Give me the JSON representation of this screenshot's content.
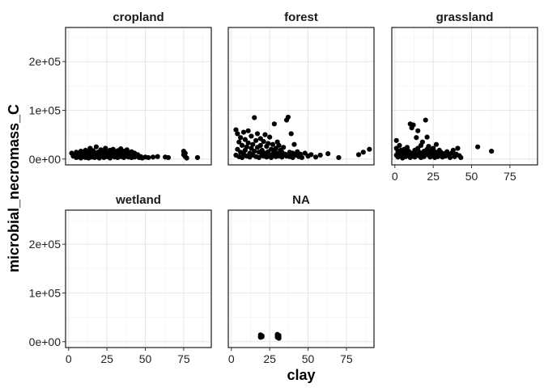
{
  "chart_data": {
    "type": "scatter",
    "layout": "facet-wrap",
    "xlabel": "clay",
    "ylabel": "microbial_necromass_C",
    "xlim": [
      -2,
      93
    ],
    "ylim": [
      -12000,
      270000
    ],
    "x_ticks": [
      0,
      25,
      50,
      75
    ],
    "x_tick_labels": [
      "0",
      "25",
      "50",
      "75"
    ],
    "y_ticks": [
      0,
      100000,
      200000
    ],
    "y_tick_labels": [
      "0e+00",
      "1e+05",
      "2e+05"
    ],
    "point_color": "#000000",
    "grid": true,
    "panels": [
      {
        "name": "cropland",
        "points": [
          [
            2,
            12000
          ],
          [
            3,
            6000
          ],
          [
            4,
            9000
          ],
          [
            5,
            3000
          ],
          [
            5,
            14000
          ],
          [
            6,
            7000
          ],
          [
            7,
            4000
          ],
          [
            7,
            11000
          ],
          [
            8,
            2000
          ],
          [
            8,
            16000
          ],
          [
            9,
            8000
          ],
          [
            10,
            5000
          ],
          [
            10,
            12000
          ],
          [
            11,
            3000
          ],
          [
            11,
            18000
          ],
          [
            12,
            7000
          ],
          [
            12,
            10000
          ],
          [
            13,
            2000
          ],
          [
            13,
            14000
          ],
          [
            14,
            6000
          ],
          [
            14,
            22000
          ],
          [
            15,
            9000
          ],
          [
            15,
            4000
          ],
          [
            16,
            12000
          ],
          [
            16,
            17000
          ],
          [
            17,
            3000
          ],
          [
            17,
            8000
          ],
          [
            18,
            11000
          ],
          [
            18,
            25000
          ],
          [
            19,
            5000
          ],
          [
            19,
            14000
          ],
          [
            20,
            7000
          ],
          [
            20,
            2000
          ],
          [
            21,
            10000
          ],
          [
            21,
            19000
          ],
          [
            22,
            6000
          ],
          [
            22,
            13000
          ],
          [
            23,
            3000
          ],
          [
            23,
            9000
          ],
          [
            24,
            16000
          ],
          [
            24,
            22000
          ],
          [
            25,
            5000
          ],
          [
            25,
            11000
          ],
          [
            26,
            8000
          ],
          [
            26,
            14000
          ],
          [
            27,
            2000
          ],
          [
            27,
            18000
          ],
          [
            28,
            6000
          ],
          [
            28,
            12000
          ],
          [
            29,
            9000
          ],
          [
            29,
            20000
          ],
          [
            30,
            4000
          ],
          [
            30,
            15000
          ],
          [
            31,
            7000
          ],
          [
            31,
            11000
          ],
          [
            32,
            3000
          ],
          [
            32,
            17000
          ],
          [
            33,
            9000
          ],
          [
            33,
            13000
          ],
          [
            34,
            5000
          ],
          [
            34,
            21000
          ],
          [
            35,
            8000
          ],
          [
            35,
            12000
          ],
          [
            36,
            3000
          ],
          [
            36,
            16000
          ],
          [
            37,
            10000
          ],
          [
            37,
            6000
          ],
          [
            38,
            14000
          ],
          [
            38,
            19000
          ],
          [
            39,
            4000
          ],
          [
            39,
            9000
          ],
          [
            40,
            11000
          ],
          [
            40,
            7000
          ],
          [
            41,
            3000
          ],
          [
            41,
            15000
          ],
          [
            42,
            8000
          ],
          [
            43,
            12000
          ],
          [
            43,
            4000
          ],
          [
            44,
            6000
          ],
          [
            45,
            9000
          ],
          [
            46,
            3000
          ],
          [
            47,
            5000
          ],
          [
            48,
            2000
          ],
          [
            50,
            4000
          ],
          [
            52,
            3000
          ],
          [
            55,
            4000
          ],
          [
            58,
            5000
          ],
          [
            63,
            4000
          ],
          [
            65,
            3000
          ],
          [
            75,
            16000
          ],
          [
            75,
            9000
          ],
          [
            76,
            5000
          ],
          [
            76,
            12000
          ],
          [
            77,
            2000
          ],
          [
            84,
            3000
          ]
        ]
      },
      {
        "name": "forest",
        "points": [
          [
            3,
            60000
          ],
          [
            3,
            8000
          ],
          [
            4,
            52000
          ],
          [
            4,
            20000
          ],
          [
            5,
            35000
          ],
          [
            5,
            5000
          ],
          [
            6,
            44000
          ],
          [
            6,
            14000
          ],
          [
            7,
            28000
          ],
          [
            7,
            3000
          ],
          [
            8,
            55000
          ],
          [
            8,
            10000
          ],
          [
            9,
            40000
          ],
          [
            9,
            18000
          ],
          [
            10,
            25000
          ],
          [
            10,
            6000
          ],
          [
            11,
            58000
          ],
          [
            11,
            33000
          ],
          [
            12,
            12000
          ],
          [
            12,
            4000
          ],
          [
            13,
            47000
          ],
          [
            13,
            22000
          ],
          [
            14,
            30000
          ],
          [
            14,
            8000
          ],
          [
            15,
            85000
          ],
          [
            15,
            16000
          ],
          [
            16,
            38000
          ],
          [
            16,
            5000
          ],
          [
            17,
            52000
          ],
          [
            17,
            24000
          ],
          [
            18,
            14000
          ],
          [
            18,
            3000
          ],
          [
            19,
            42000
          ],
          [
            19,
            28000
          ],
          [
            20,
            9000
          ],
          [
            20,
            18000
          ],
          [
            21,
            36000
          ],
          [
            21,
            6000
          ],
          [
            22,
            50000
          ],
          [
            22,
            12000
          ],
          [
            23,
            26000
          ],
          [
            23,
            4000
          ],
          [
            24,
            32000
          ],
          [
            24,
            15000
          ],
          [
            25,
            45000
          ],
          [
            25,
            8000
          ],
          [
            26,
            20000
          ],
          [
            26,
            3000
          ],
          [
            27,
            30000
          ],
          [
            27,
            10000
          ],
          [
            28,
            72000
          ],
          [
            28,
            16000
          ],
          [
            29,
            22000
          ],
          [
            29,
            5000
          ],
          [
            30,
            35000
          ],
          [
            30,
            12000
          ],
          [
            31,
            28000
          ],
          [
            31,
            6000
          ],
          [
            32,
            18000
          ],
          [
            32,
            9000
          ],
          [
            33,
            14000
          ],
          [
            33,
            4000
          ],
          [
            34,
            24000
          ],
          [
            35,
            10000
          ],
          [
            36,
            80000
          ],
          [
            36,
            6000
          ],
          [
            37,
            86000
          ],
          [
            38,
            14000
          ],
          [
            38,
            5000
          ],
          [
            39,
            52000
          ],
          [
            40,
            12000
          ],
          [
            40,
            3000
          ],
          [
            41,
            30000
          ],
          [
            42,
            8000
          ],
          [
            43,
            15000
          ],
          [
            44,
            5000
          ],
          [
            45,
            10000
          ],
          [
            46,
            3000
          ],
          [
            48,
            12000
          ],
          [
            50,
            6000
          ],
          [
            52,
            9000
          ],
          [
            55,
            4000
          ],
          [
            58,
            8000
          ],
          [
            63,
            11000
          ],
          [
            70,
            3000
          ],
          [
            83,
            9000
          ],
          [
            86,
            14000
          ],
          [
            90,
            20000
          ]
        ]
      },
      {
        "name": "grassland",
        "points": [
          [
            1,
            38000
          ],
          [
            1,
            22000
          ],
          [
            1,
            8000
          ],
          [
            2,
            15000
          ],
          [
            2,
            4000
          ],
          [
            3,
            28000
          ],
          [
            3,
            10000
          ],
          [
            4,
            6000
          ],
          [
            4,
            18000
          ],
          [
            5,
            12000
          ],
          [
            5,
            2000
          ],
          [
            6,
            9000
          ],
          [
            6,
            20000
          ],
          [
            7,
            14000
          ],
          [
            7,
            5000
          ],
          [
            8,
            11000
          ],
          [
            8,
            24000
          ],
          [
            9,
            7000
          ],
          [
            9,
            16000
          ],
          [
            10,
            72000
          ],
          [
            10,
            3000
          ],
          [
            11,
            64000
          ],
          [
            11,
            12000
          ],
          [
            12,
            70000
          ],
          [
            12,
            8000
          ],
          [
            13,
            18000
          ],
          [
            13,
            4000
          ],
          [
            14,
            44000
          ],
          [
            14,
            10000
          ],
          [
            15,
            58000
          ],
          [
            15,
            22000
          ],
          [
            16,
            6000
          ],
          [
            16,
            14000
          ],
          [
            17,
            28000
          ],
          [
            17,
            3000
          ],
          [
            18,
            35000
          ],
          [
            18,
            9000
          ],
          [
            19,
            16000
          ],
          [
            19,
            5000
          ],
          [
            20,
            80000
          ],
          [
            20,
            12000
          ],
          [
            21,
            45000
          ],
          [
            21,
            20000
          ],
          [
            22,
            8000
          ],
          [
            22,
            26000
          ],
          [
            23,
            14000
          ],
          [
            23,
            4000
          ],
          [
            24,
            18000
          ],
          [
            24,
            10000
          ],
          [
            25,
            6000
          ],
          [
            25,
            22000
          ],
          [
            26,
            15000
          ],
          [
            26,
            3000
          ],
          [
            27,
            30000
          ],
          [
            27,
            9000
          ],
          [
            28,
            12000
          ],
          [
            28,
            5000
          ],
          [
            29,
            18000
          ],
          [
            30,
            8000
          ],
          [
            30,
            14000
          ],
          [
            31,
            4000
          ],
          [
            32,
            11000
          ],
          [
            33,
            6000
          ],
          [
            34,
            15000
          ],
          [
            35,
            9000
          ],
          [
            36,
            3000
          ],
          [
            37,
            12000
          ],
          [
            38,
            18000
          ],
          [
            39,
            5000
          ],
          [
            40,
            10000
          ],
          [
            41,
            22000
          ],
          [
            42,
            7000
          ],
          [
            43,
            3000
          ],
          [
            54,
            25000
          ],
          [
            63,
            16000
          ]
        ]
      },
      {
        "name": "wetland",
        "points": []
      },
      {
        "name": "NA",
        "points": [
          [
            19,
            14000
          ],
          [
            19,
            11000
          ],
          [
            19,
            9000
          ],
          [
            20,
            12000
          ],
          [
            20,
            10000
          ],
          [
            30,
            15000
          ],
          [
            30,
            12000
          ],
          [
            30,
            9000
          ],
          [
            31,
            13000
          ],
          [
            31,
            10000
          ],
          [
            31,
            7000
          ]
        ]
      }
    ]
  }
}
